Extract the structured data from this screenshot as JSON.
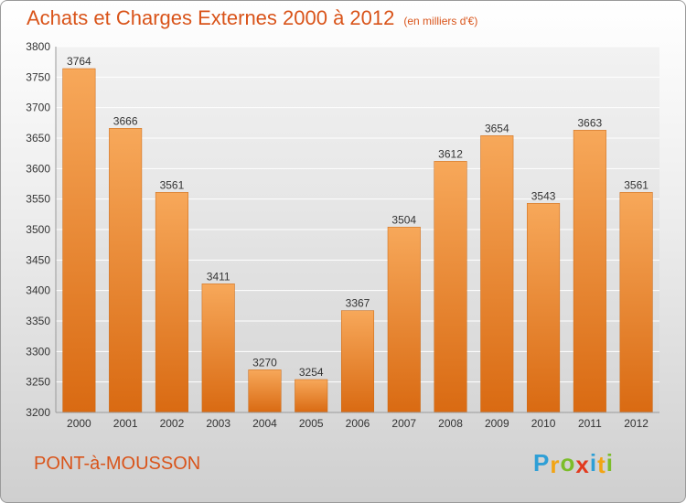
{
  "header": {
    "title": "Achats et Charges Externes 2000 à 2012",
    "unit": "(en milliers d'€)"
  },
  "footer": {
    "town": "PONT-à-MOUSSON",
    "logo_letters": [
      "P",
      "r",
      "o",
      "x",
      "i",
      "t",
      "i"
    ],
    "logo_colors": [
      "#2e9fd6",
      "#f2a413",
      "#7cbd2a",
      "#e23a1e",
      "#2e9fd6",
      "#f2a413",
      "#7cbd2a"
    ]
  },
  "chart_data": {
    "type": "bar",
    "categories": [
      "2000",
      "2001",
      "2002",
      "2003",
      "2004",
      "2005",
      "2006",
      "2007",
      "2008",
      "2009",
      "2010",
      "2011",
      "2012"
    ],
    "values": [
      3764,
      3666,
      3561,
      3411,
      3270,
      3254,
      3367,
      3504,
      3612,
      3654,
      3543,
      3663,
      3561
    ],
    "title": "Achats et Charges Externes 2000 à 2012",
    "ylim": [
      3200,
      3800
    ],
    "yticks": [
      3200,
      3250,
      3300,
      3350,
      3400,
      3450,
      3500,
      3550,
      3600,
      3650,
      3700,
      3750,
      3800
    ],
    "grid": true,
    "bar_color_top": "#f7a85a",
    "bar_color_bottom": "#d96a12"
  }
}
